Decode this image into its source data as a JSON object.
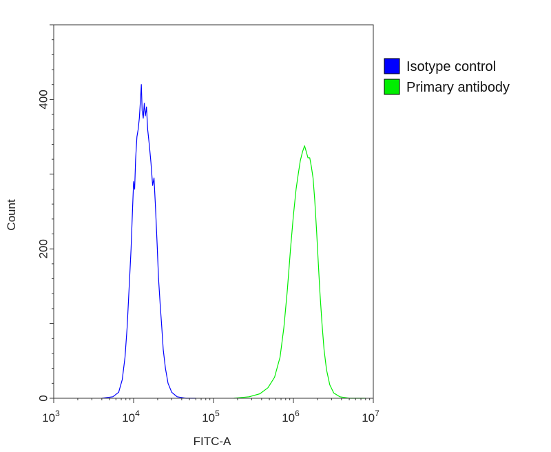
{
  "chart_data": {
    "type": "line",
    "title": "",
    "xlabel": "FITC-A",
    "ylabel": "Count",
    "x_scale": "log",
    "xlim": [
      1000,
      10000000
    ],
    "ylim": [
      0,
      500
    ],
    "grid": false,
    "legend_position": "top-right",
    "x_ticks": [
      {
        "base": "10",
        "exp": "3",
        "value": 1000
      },
      {
        "base": "10",
        "exp": "4",
        "value": 10000
      },
      {
        "base": "10",
        "exp": "5",
        "value": 100000
      },
      {
        "base": "10",
        "exp": "6",
        "value": 1000000
      },
      {
        "base": "10",
        "exp": "7",
        "value": 10000000
      }
    ],
    "y_ticks": [
      {
        "label": "0",
        "value": 0
      },
      {
        "label": "200",
        "value": 200
      },
      {
        "label": "400",
        "value": 400
      }
    ],
    "series": [
      {
        "name": "Isotype control",
        "color": "#0000ff",
        "points": [
          [
            4000,
            0
          ],
          [
            5500,
            2
          ],
          [
            6500,
            8
          ],
          [
            7200,
            25
          ],
          [
            7800,
            55
          ],
          [
            8300,
            95
          ],
          [
            8800,
            150
          ],
          [
            9300,
            200
          ],
          [
            9700,
            255
          ],
          [
            10000,
            290
          ],
          [
            10300,
            280
          ],
          [
            10600,
            320
          ],
          [
            11000,
            350
          ],
          [
            11400,
            360
          ],
          [
            11800,
            375
          ],
          [
            12200,
            400
          ],
          [
            12500,
            420
          ],
          [
            12800,
            385
          ],
          [
            13200,
            375
          ],
          [
            13600,
            395
          ],
          [
            14000,
            378
          ],
          [
            14500,
            390
          ],
          [
            15000,
            360
          ],
          [
            15700,
            340
          ],
          [
            16500,
            315
          ],
          [
            17300,
            285
          ],
          [
            18000,
            295
          ],
          [
            18800,
            255
          ],
          [
            19700,
            205
          ],
          [
            20500,
            160
          ],
          [
            21500,
            125
          ],
          [
            22500,
            95
          ],
          [
            23500,
            65
          ],
          [
            25000,
            40
          ],
          [
            27000,
            20
          ],
          [
            30000,
            8
          ],
          [
            35000,
            2
          ],
          [
            45000,
            0
          ],
          [
            60000,
            0
          ]
        ]
      },
      {
        "name": "Primary antibody",
        "color": "#00ee00",
        "points": [
          [
            180000,
            0
          ],
          [
            280000,
            2
          ],
          [
            380000,
            6
          ],
          [
            480000,
            14
          ],
          [
            580000,
            28
          ],
          [
            680000,
            55
          ],
          [
            760000,
            95
          ],
          [
            840000,
            145
          ],
          [
            920000,
            200
          ],
          [
            1000000,
            245
          ],
          [
            1080000,
            280
          ],
          [
            1150000,
            300
          ],
          [
            1220000,
            318
          ],
          [
            1300000,
            330
          ],
          [
            1380000,
            338
          ],
          [
            1450000,
            330
          ],
          [
            1520000,
            322
          ],
          [
            1600000,
            322
          ],
          [
            1680000,
            310
          ],
          [
            1760000,
            295
          ],
          [
            1850000,
            265
          ],
          [
            1950000,
            225
          ],
          [
            2050000,
            180
          ],
          [
            2150000,
            140
          ],
          [
            2280000,
            100
          ],
          [
            2420000,
            65
          ],
          [
            2600000,
            38
          ],
          [
            2850000,
            18
          ],
          [
            3200000,
            7
          ],
          [
            3800000,
            2
          ],
          [
            5000000,
            0
          ],
          [
            8000000,
            0
          ]
        ]
      }
    ]
  }
}
